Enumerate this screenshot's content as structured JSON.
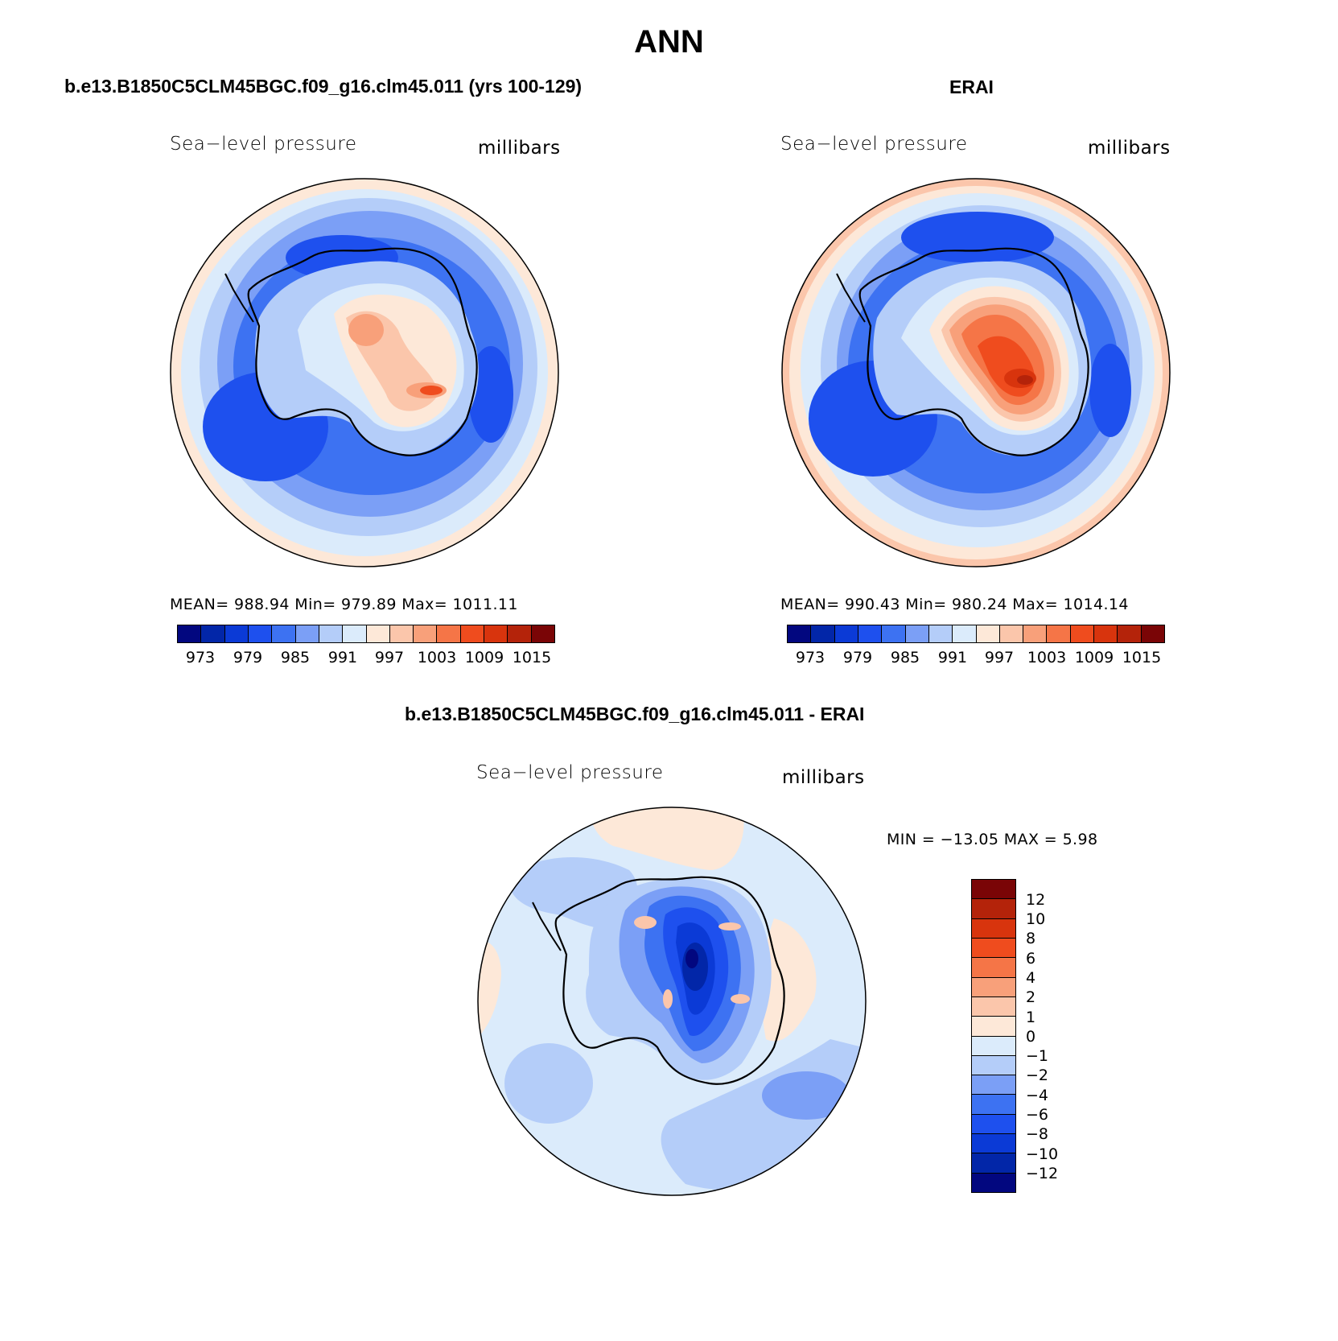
{
  "title": "ANN",
  "palette": [
    "#02077f",
    "#0226a8",
    "#0b3ad6",
    "#1e50ee",
    "#3d72f2",
    "#7b9ff6",
    "#b4cdf9",
    "#dbebfb",
    "#fde8d8",
    "#fbc6ab",
    "#f8a07a",
    "#f57547",
    "#ef4c1e",
    "#d8340d",
    "#b4230a",
    "#7a0506"
  ],
  "panels": {
    "model": {
      "title": "b.e13.B1850C5CLM45BGC.f09_g16.clm45.011 (yrs 100-129)",
      "field": "Sea−level pressure",
      "units": "millibars",
      "stats": "MEAN= 988.94   Min= 979.89   Max= 1011.11",
      "colorbar_ticks": [
        "973",
        "979",
        "985",
        "991",
        "997",
        "1003",
        "1009",
        "1015"
      ]
    },
    "obs": {
      "title": "ERAI",
      "field": "Sea−level pressure",
      "units": "millibars",
      "stats": "MEAN= 990.43   Min= 980.24   Max= 1014.14",
      "colorbar_ticks": [
        "973",
        "979",
        "985",
        "991",
        "997",
        "1003",
        "1009",
        "1015"
      ]
    },
    "diff": {
      "title": "b.e13.B1850C5CLM45BGC.f09_g16.clm45.011 - ERAI",
      "field": "Sea−level pressure",
      "units": "millibars",
      "stats": "MIN = −13.05 MAX =    5.98",
      "colorbar_ticks": [
        "12",
        "10",
        "8",
        "6",
        "4",
        "2",
        "1",
        "0",
        "−1",
        "−2",
        "−4",
        "−6",
        "−8",
        "−10",
        "−12"
      ]
    }
  }
}
